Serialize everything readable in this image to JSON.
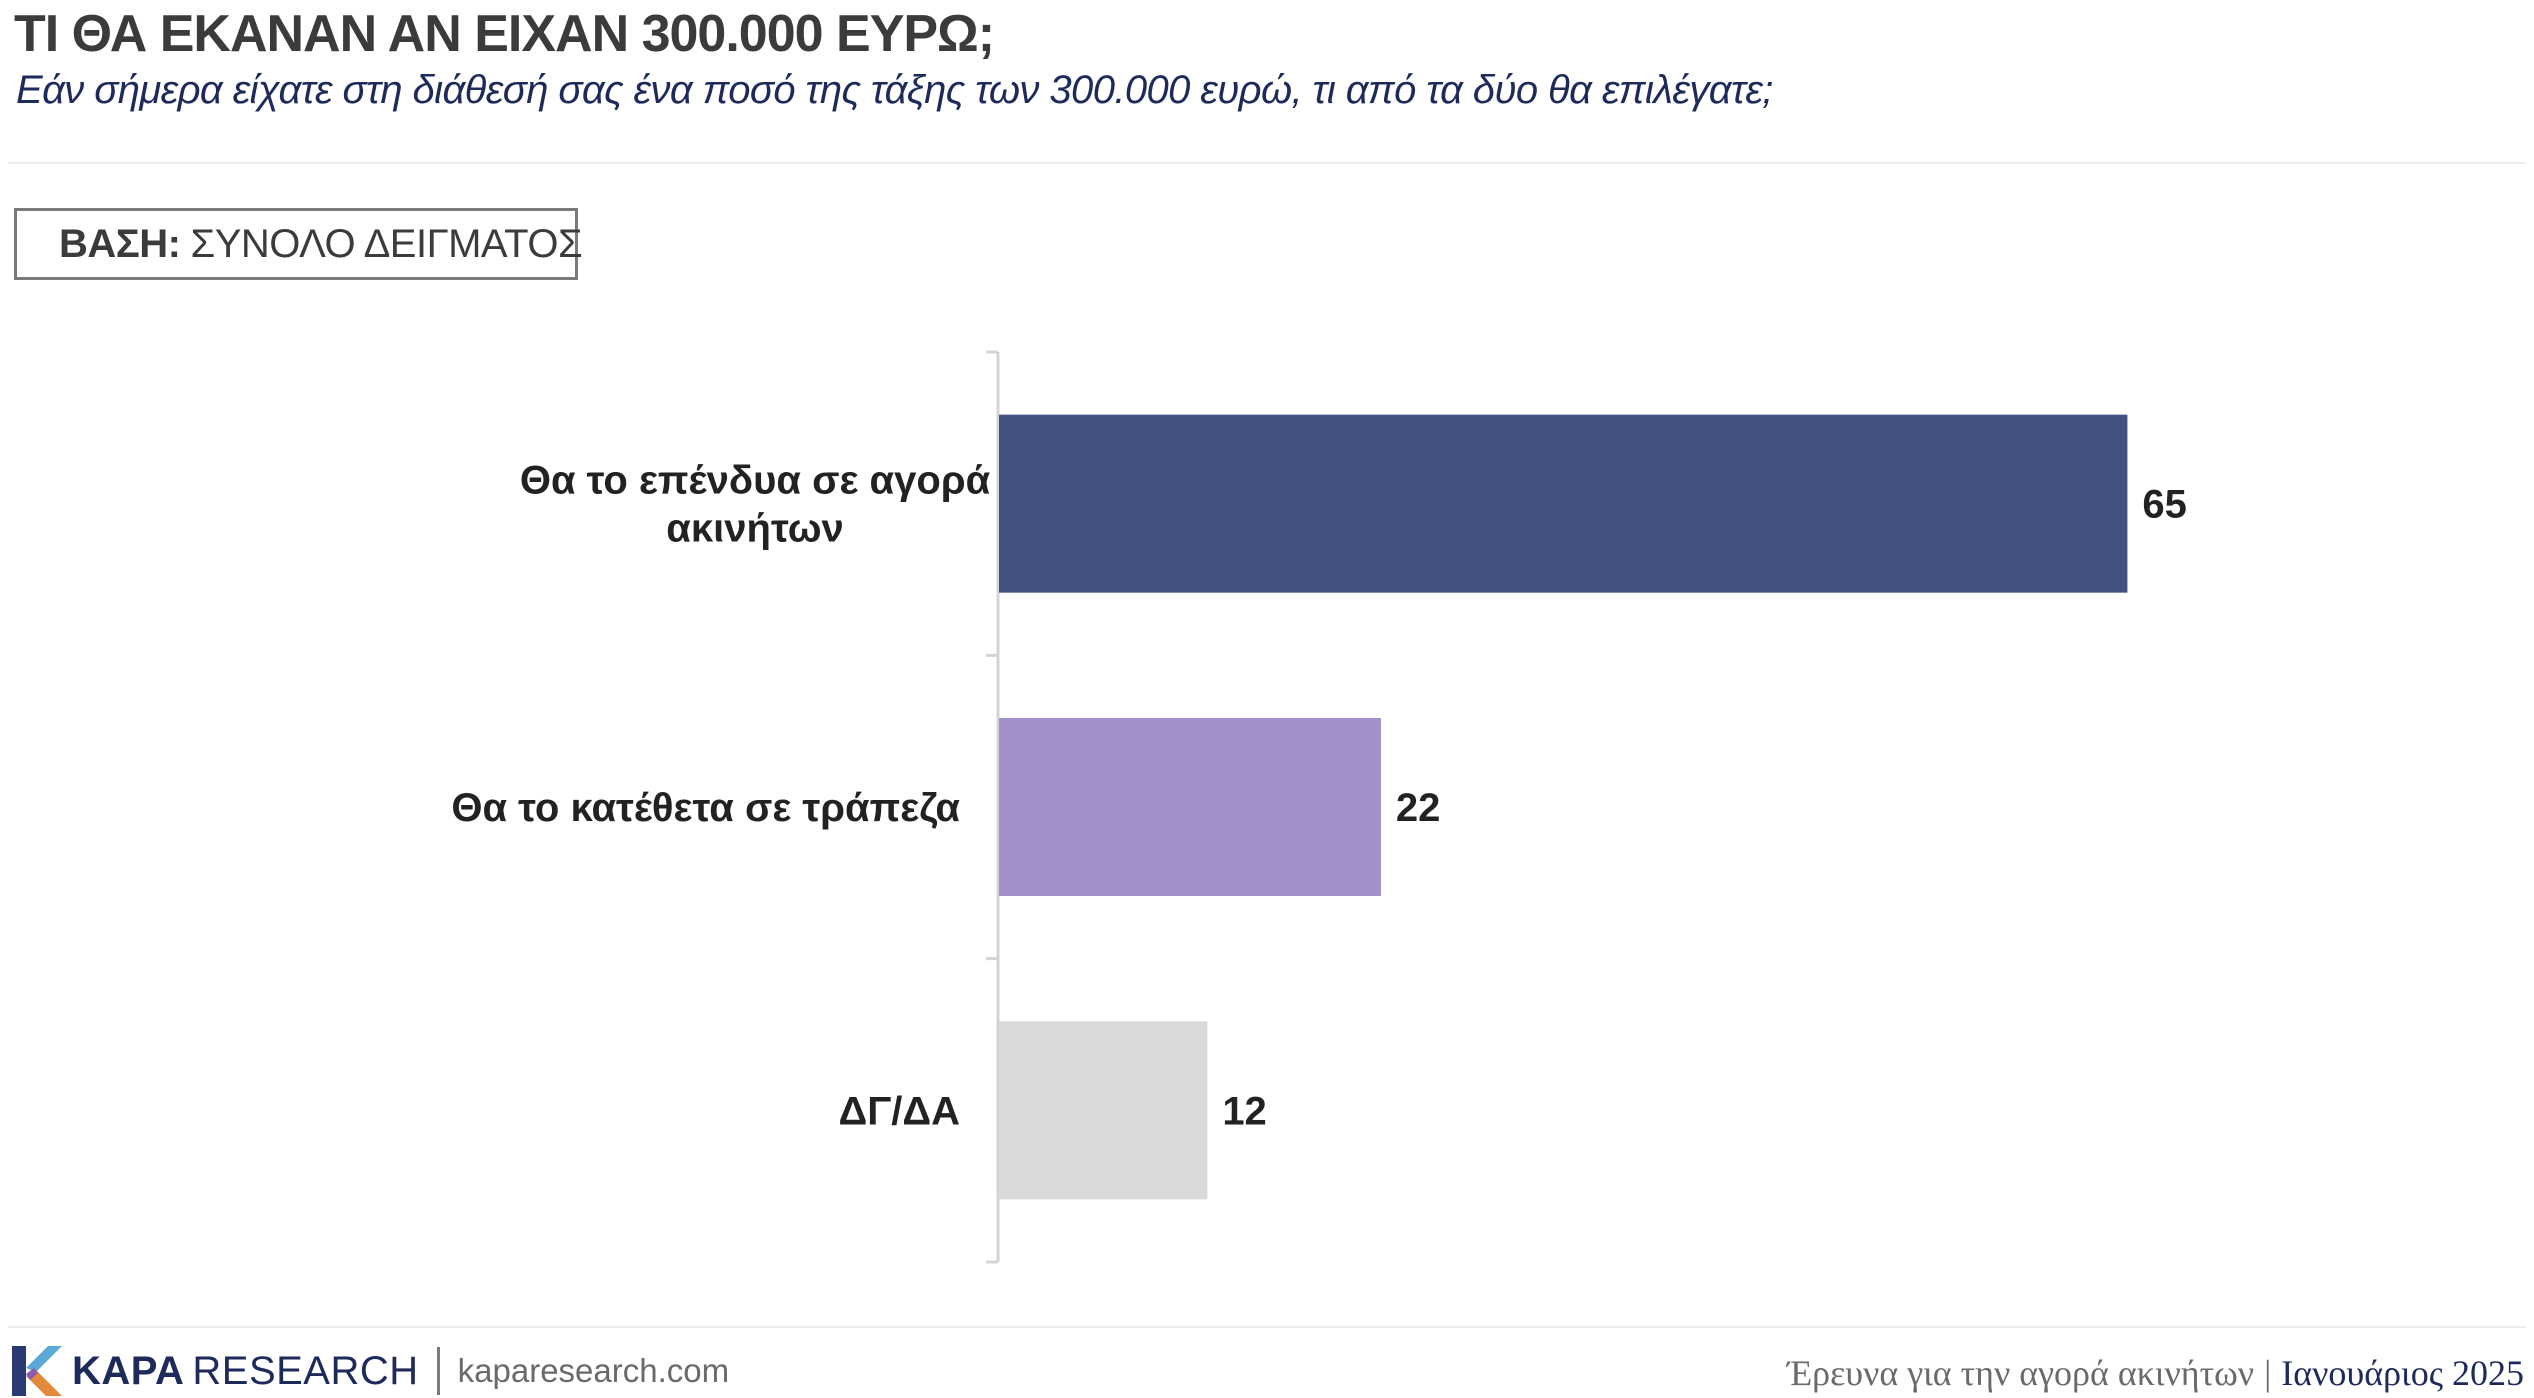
{
  "header": {
    "title": "ΤΙ ΘΑ ΕΚΑΝΑΝ ΑΝ ΕΙΧΑΝ 300.000 ΕΥΡΩ;",
    "subtitle": "Εάν σήμερα είχατε στη διάθεσή σας ένα ποσό της τάξης των 300.000 ευρώ, τι από τα δύο θα επιλέγατε;"
  },
  "base": {
    "key": "ΒΑΣΗ:",
    "value": "ΣΥΝΟΛΟ ΔΕΙΓΜΑΤΟΣ"
  },
  "chart_data": {
    "type": "bar",
    "orientation": "horizontal",
    "categories": [
      "Θα το επένδυα σε αγορά ακινήτων",
      "Θα το κατέθετα σε τράπεζα",
      "ΔΓ/ΔΑ"
    ],
    "category_lines": [
      [
        "Θα το επένδυα σε αγορά",
        "ακινήτων"
      ],
      [
        "Θα το κατέθετα σε τράπεζα"
      ],
      [
        "ΔΓ/ΔΑ"
      ]
    ],
    "values": [
      65,
      22,
      12
    ],
    "colors": [
      "#43517e",
      "#a38fca",
      "#d9d9d9"
    ],
    "xlim": [
      0,
      100
    ],
    "grid": false,
    "legend": "none",
    "data_labels": true
  },
  "footer": {
    "brand_bold": "KAPA",
    "brand_light": "RESEARCH",
    "url": "kaparesearch.com",
    "survey": "Έρευνα για την αγορά ακινήτων",
    "separator": "|",
    "date": "Ιανουάριος 2025"
  }
}
